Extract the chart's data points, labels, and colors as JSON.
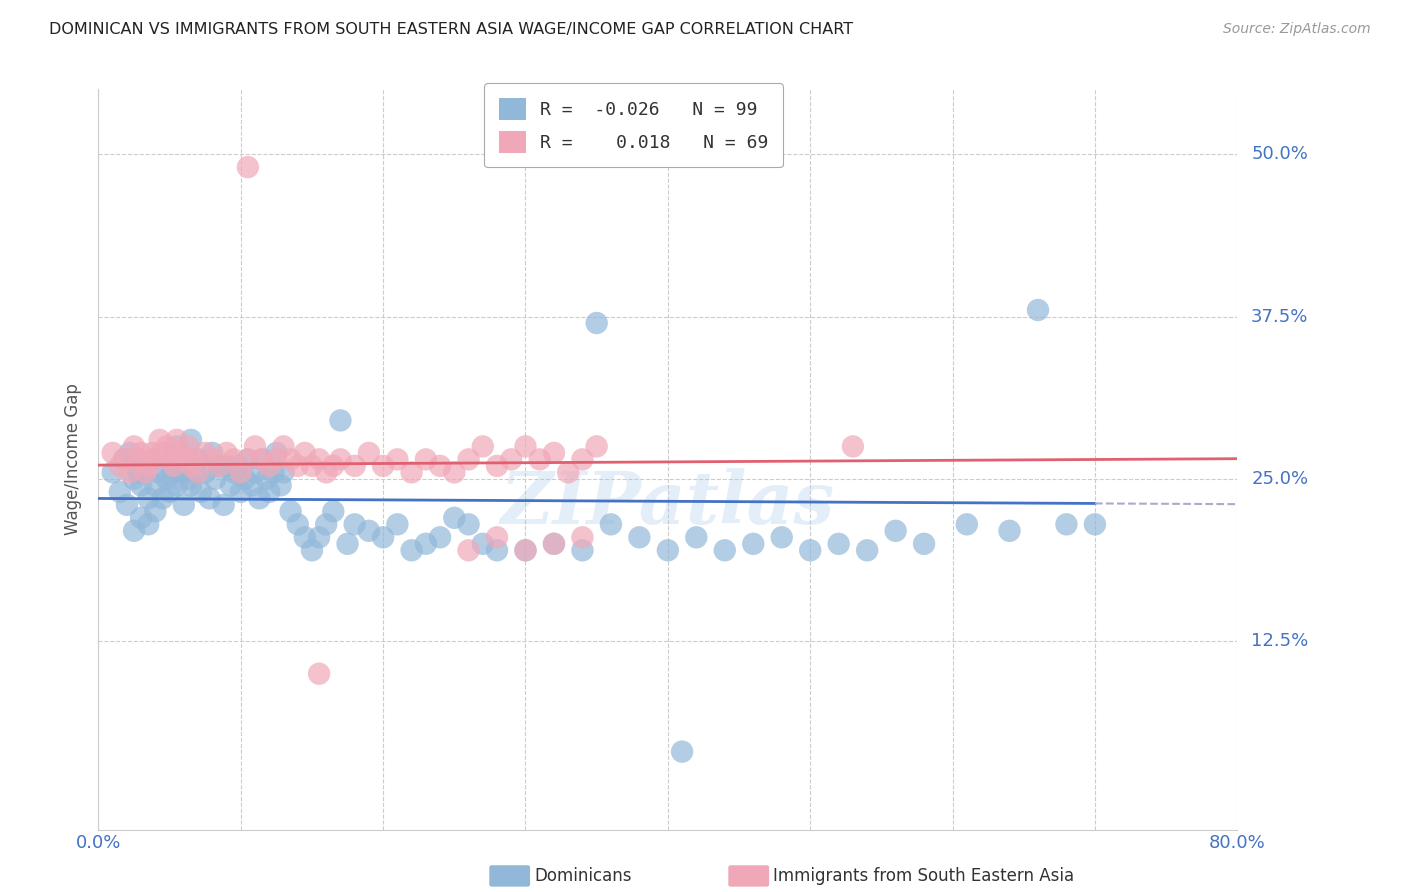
{
  "title": "DOMINICAN VS IMMIGRANTS FROM SOUTH EASTERN ASIA WAGE/INCOME GAP CORRELATION CHART",
  "source": "Source: ZipAtlas.com",
  "ylabel": "Wage/Income Gap",
  "ytick_labels": [
    "12.5%",
    "25.0%",
    "37.5%",
    "50.0%"
  ],
  "ytick_values": [
    0.125,
    0.25,
    0.375,
    0.5
  ],
  "xlim": [
    0.0,
    0.8
  ],
  "ylim": [
    -0.02,
    0.55
  ],
  "title_color": "#222222",
  "source_color": "#999999",
  "ytick_color": "#4472c4",
  "xtick_color": "#4472c4",
  "grid_color": "#cccccc",
  "blue_color": "#92b8d9",
  "pink_color": "#f0a8b8",
  "blue_line_color": "#4472c4",
  "pink_line_color": "#e06070",
  "blue_R": -0.026,
  "blue_N": 99,
  "pink_R": 0.018,
  "pink_N": 69,
  "watermark": "ZIPatlas",
  "legend_label_blue": "Dominicans",
  "legend_label_pink": "Immigrants from South Eastern Asia",
  "blue_x": [
    0.01,
    0.015,
    0.018,
    0.02,
    0.022,
    0.025,
    0.025,
    0.028,
    0.03,
    0.03,
    0.033,
    0.035,
    0.035,
    0.038,
    0.04,
    0.04,
    0.042,
    0.045,
    0.045,
    0.048,
    0.05,
    0.05,
    0.052,
    0.055,
    0.055,
    0.058,
    0.06,
    0.06,
    0.063,
    0.065,
    0.065,
    0.068,
    0.07,
    0.072,
    0.075,
    0.078,
    0.08,
    0.082,
    0.085,
    0.088,
    0.09,
    0.093,
    0.095,
    0.098,
    0.1,
    0.103,
    0.105,
    0.108,
    0.11,
    0.113,
    0.115,
    0.118,
    0.12,
    0.123,
    0.125,
    0.128,
    0.13,
    0.135,
    0.14,
    0.145,
    0.15,
    0.155,
    0.16,
    0.165,
    0.17,
    0.175,
    0.18,
    0.19,
    0.2,
    0.21,
    0.22,
    0.23,
    0.24,
    0.25,
    0.26,
    0.27,
    0.28,
    0.3,
    0.32,
    0.34,
    0.36,
    0.38,
    0.4,
    0.42,
    0.44,
    0.46,
    0.48,
    0.5,
    0.52,
    0.54,
    0.56,
    0.58,
    0.61,
    0.64,
    0.66,
    0.68,
    0.7,
    0.35,
    0.41
  ],
  "blue_y": [
    0.255,
    0.24,
    0.265,
    0.23,
    0.27,
    0.25,
    0.21,
    0.255,
    0.245,
    0.22,
    0.26,
    0.235,
    0.215,
    0.265,
    0.245,
    0.225,
    0.255,
    0.27,
    0.235,
    0.25,
    0.265,
    0.24,
    0.255,
    0.275,
    0.245,
    0.255,
    0.26,
    0.23,
    0.25,
    0.28,
    0.245,
    0.255,
    0.265,
    0.24,
    0.255,
    0.235,
    0.27,
    0.25,
    0.26,
    0.23,
    0.26,
    0.245,
    0.255,
    0.26,
    0.24,
    0.25,
    0.265,
    0.245,
    0.255,
    0.235,
    0.265,
    0.25,
    0.24,
    0.255,
    0.27,
    0.245,
    0.255,
    0.225,
    0.215,
    0.205,
    0.195,
    0.205,
    0.215,
    0.225,
    0.295,
    0.2,
    0.215,
    0.21,
    0.205,
    0.215,
    0.195,
    0.2,
    0.205,
    0.22,
    0.215,
    0.2,
    0.195,
    0.195,
    0.2,
    0.195,
    0.215,
    0.205,
    0.195,
    0.205,
    0.195,
    0.2,
    0.205,
    0.195,
    0.2,
    0.195,
    0.21,
    0.2,
    0.215,
    0.21,
    0.38,
    0.215,
    0.215,
    0.37,
    0.04
  ],
  "pink_x": [
    0.01,
    0.015,
    0.018,
    0.022,
    0.025,
    0.028,
    0.03,
    0.033,
    0.035,
    0.038,
    0.04,
    0.043,
    0.045,
    0.048,
    0.05,
    0.053,
    0.055,
    0.058,
    0.06,
    0.063,
    0.065,
    0.068,
    0.07,
    0.075,
    0.08,
    0.085,
    0.09,
    0.095,
    0.1,
    0.105,
    0.11,
    0.115,
    0.12,
    0.125,
    0.13,
    0.135,
    0.14,
    0.145,
    0.15,
    0.155,
    0.16,
    0.165,
    0.17,
    0.18,
    0.19,
    0.2,
    0.21,
    0.22,
    0.23,
    0.24,
    0.25,
    0.26,
    0.27,
    0.28,
    0.29,
    0.3,
    0.31,
    0.32,
    0.33,
    0.34,
    0.35,
    0.26,
    0.28,
    0.3,
    0.32,
    0.34,
    0.53,
    0.155,
    0.105
  ],
  "pink_y": [
    0.27,
    0.26,
    0.265,
    0.255,
    0.275,
    0.265,
    0.27,
    0.255,
    0.26,
    0.27,
    0.265,
    0.28,
    0.27,
    0.275,
    0.265,
    0.26,
    0.28,
    0.27,
    0.265,
    0.275,
    0.26,
    0.265,
    0.255,
    0.27,
    0.265,
    0.26,
    0.27,
    0.265,
    0.255,
    0.265,
    0.275,
    0.265,
    0.26,
    0.265,
    0.275,
    0.265,
    0.26,
    0.27,
    0.26,
    0.265,
    0.255,
    0.26,
    0.265,
    0.26,
    0.27,
    0.26,
    0.265,
    0.255,
    0.265,
    0.26,
    0.255,
    0.265,
    0.275,
    0.26,
    0.265,
    0.275,
    0.265,
    0.27,
    0.255,
    0.265,
    0.275,
    0.195,
    0.205,
    0.195,
    0.2,
    0.205,
    0.275,
    0.1,
    0.49
  ]
}
